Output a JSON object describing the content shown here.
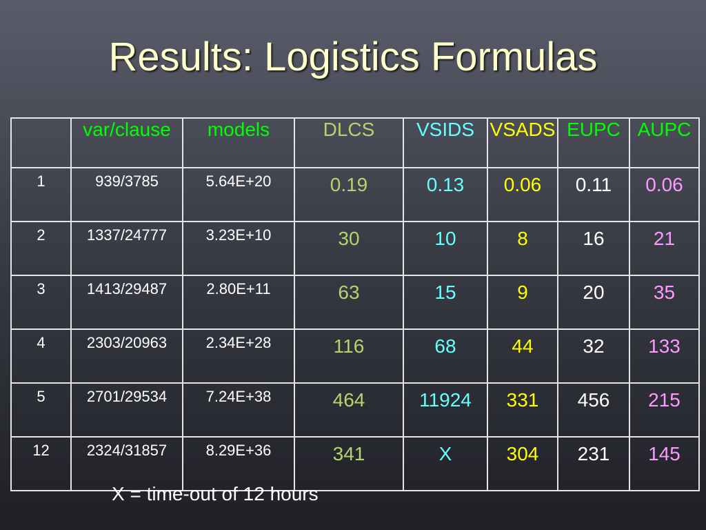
{
  "title": "Results: Logistics Formulas",
  "table": {
    "headers": [
      "",
      "var/clause",
      "models",
      "DLCS",
      "VSIDS",
      "VSADS",
      "EUPC",
      "AUPC"
    ],
    "rows": [
      [
        "1",
        "939/3785",
        "5.64E+20",
        "0.19",
        "0.13",
        "0.06",
        "0.11",
        "0.06"
      ],
      [
        "2",
        "1337/24777",
        "3.23E+10",
        "30",
        "10",
        "8",
        "16",
        "21"
      ],
      [
        "3",
        "1413/29487",
        "2.80E+11",
        "63",
        "15",
        "9",
        "20",
        "35"
      ],
      [
        "4",
        "2303/20963",
        "2.34E+28",
        "116",
        "68",
        "44",
        "32",
        "133"
      ],
      [
        "5",
        "2701/29534",
        "7.24E+38",
        "464",
        "11924",
        "331",
        "456",
        "215"
      ],
      [
        "12",
        "2324/31857",
        "8.29E+36",
        "341",
        "X",
        "304",
        "231",
        "145"
      ]
    ]
  },
  "colors": {
    "title": "#ffffcc",
    "var_models_header": "#00ff00",
    "dlcs": "#b4d46e",
    "vsids": "#66ffff",
    "vsads": "#ffff00",
    "eupc": "#ffffff",
    "aupc": "#ff99ff"
  },
  "footnote": "X = time-out of 12 hours"
}
